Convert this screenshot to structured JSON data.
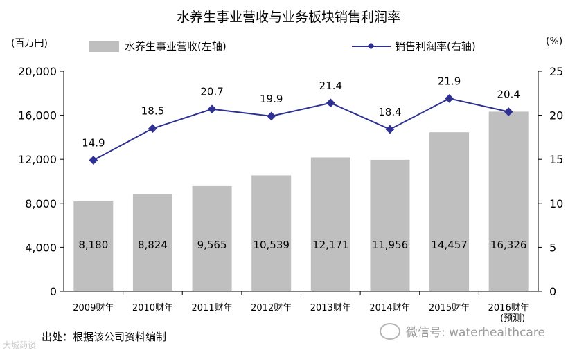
{
  "chart_data": {
    "type": "bar",
    "title": "水养生事业营收与业务板块销售利润率",
    "categories": [
      "2009财年",
      "2010财年",
      "2011财年",
      "2012财年",
      "2013财年",
      "2014财年",
      "2015财年",
      "2016财年"
    ],
    "category_note": {
      "index": 7,
      "text": "(预测)"
    },
    "y_left": {
      "unit": "(百万円)",
      "ticks": [
        "0",
        "4,000",
        "8,000",
        "12,000",
        "16,000",
        "20,000"
      ],
      "ylim": [
        0,
        20000
      ]
    },
    "y_right": {
      "unit": "(%)",
      "ticks": [
        "0",
        "5",
        "10",
        "15",
        "20",
        "25"
      ],
      "ylim": [
        0,
        25
      ]
    },
    "series": [
      {
        "name": "水养生事业营收(左轴)",
        "kind": "bar",
        "axis": "left",
        "color": "#bfbfbf",
        "values": [
          8180,
          8824,
          9565,
          10539,
          12171,
          11956,
          14457,
          16326
        ],
        "labels": [
          "8,180",
          "8,824",
          "9,565",
          "10,539",
          "12,171",
          "11,956",
          "14,457",
          "16,326"
        ]
      },
      {
        "name": "销售利润率(右轴)",
        "kind": "line",
        "axis": "right",
        "color": "#2e3192",
        "values": [
          14.9,
          18.5,
          20.7,
          19.9,
          21.4,
          18.4,
          21.9,
          20.4
        ],
        "labels": [
          "14.9",
          "18.5",
          "20.7",
          "19.9",
          "21.4",
          "18.4",
          "21.9",
          "20.4"
        ]
      }
    ],
    "legend": "top",
    "grid": false
  },
  "source_text": "出处：根据该公司资料编制",
  "wechat_text": "微信号: waterhealthcare",
  "watermark_text": "大城药谈"
}
